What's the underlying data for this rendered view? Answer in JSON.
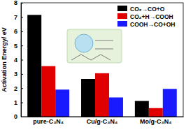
{
  "chart_data": {
    "type": "bar",
    "y_label": "Activation Energy/ eV",
    "categories": [
      "pure-C₃N₄",
      "Cu/g-C₃N₄",
      "Mo/g-C₃N₄"
    ],
    "series": [
      {
        "name": "CO₂→CO+O",
        "color": "#000000",
        "values": [
          7.15,
          2.65,
          1.1
        ]
      },
      {
        "name": "CO₂+H→COOH",
        "color": "#e00000",
        "values": [
          3.55,
          3.05,
          0.6
        ]
      },
      {
        "name": "COOH→CO+OH",
        "color": "#1a1aff",
        "values": [
          1.9,
          1.35,
          1.95
        ]
      }
    ],
    "ylim": [
      0,
      8
    ],
    "yticks": [
      0,
      1,
      2,
      3,
      4,
      5,
      6,
      7,
      8
    ],
    "legend": "upper right"
  }
}
